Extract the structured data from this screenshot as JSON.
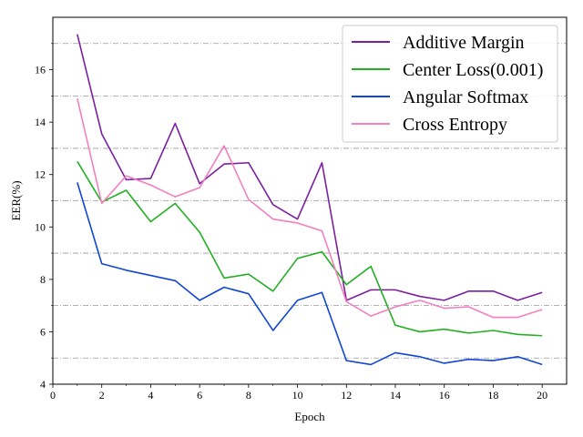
{
  "chart_data": {
    "type": "line",
    "title": "",
    "xlabel": "Epoch",
    "ylabel": "EER(%)",
    "xlim": [
      0,
      21
    ],
    "ylim": [
      4,
      18
    ],
    "xticks": [
      0,
      2,
      4,
      6,
      8,
      10,
      12,
      14,
      16,
      18,
      20
    ],
    "yticks": [
      4,
      6,
      8,
      10,
      12,
      14,
      16
    ],
    "grid_y": [
      5,
      7,
      9,
      11,
      13,
      15,
      17
    ],
    "grid": "horizontal dash-dot",
    "legend_position": "top-right",
    "x": [
      1,
      2,
      3,
      4,
      5,
      6,
      7,
      8,
      9,
      10,
      11,
      12,
      13,
      14,
      15,
      16,
      17,
      18,
      19,
      20
    ],
    "series": [
      {
        "name": "Additive Margin",
        "color": "#7b1fa2",
        "values": [
          17.35,
          13.55,
          11.8,
          11.85,
          13.95,
          11.65,
          12.4,
          12.45,
          10.85,
          10.3,
          12.45,
          7.2,
          7.6,
          7.6,
          7.35,
          7.2,
          7.55,
          7.55,
          7.2,
          7.5
        ]
      },
      {
        "name": "Center Loss(0.001)",
        "color": "#22b022",
        "values": [
          12.5,
          10.95,
          11.4,
          10.2,
          10.9,
          9.8,
          8.05,
          8.2,
          7.55,
          8.8,
          9.05,
          7.8,
          8.5,
          6.25,
          6.0,
          6.1,
          5.95,
          6.05,
          5.9,
          5.85
        ]
      },
      {
        "name": "Angular Softmax",
        "color": "#1046d6",
        "values": [
          11.7,
          8.6,
          8.35,
          8.15,
          7.95,
          7.2,
          7.7,
          7.45,
          6.05,
          7.2,
          7.5,
          4.9,
          4.75,
          5.2,
          5.05,
          4.8,
          4.95,
          4.9,
          5.05,
          4.75
        ]
      },
      {
        "name": "Cross Entropy",
        "color": "#f27fbf",
        "values": [
          14.9,
          10.9,
          11.95,
          11.6,
          11.15,
          11.5,
          13.1,
          11.05,
          10.3,
          10.15,
          9.85,
          7.15,
          6.6,
          6.95,
          7.2,
          6.9,
          6.95,
          6.55,
          6.55,
          6.85
        ]
      }
    ]
  }
}
